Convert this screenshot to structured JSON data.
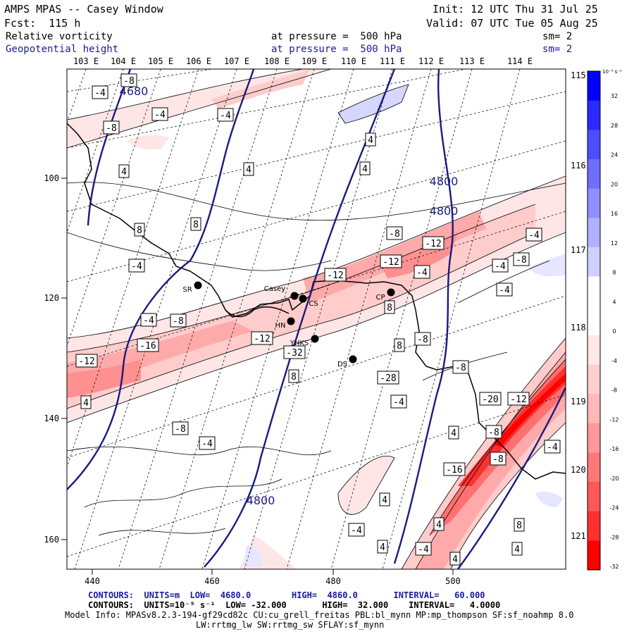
{
  "header": {
    "left_line1": "AMPS MPAS -- Casey Window",
    "left_line2": "Fcst:  115 h",
    "right_line1": "Init: 12 UTC Thu 31 Jul 25",
    "right_line2": "Valid: 07 UTC Tue 05 Aug 25",
    "field1_name": "Relative vorticity",
    "field1_level": "at pressure =  500 hPa",
    "field1_sm": "sm= 2",
    "field2_name": "Geopotential height",
    "field2_level": "at pressure =  500 hPa",
    "field2_sm": "sm= 2"
  },
  "map": {
    "lon_top_labels": [
      "103 E",
      "104 E",
      "105 E",
      "106 E",
      "107 E",
      "108 E",
      "109 E",
      "110 E",
      "111 E",
      "112 E",
      "113 E",
      "114 E"
    ],
    "lon_right_labels": [
      "115 E",
      "116 E",
      "117 E",
      "118 E",
      "119 E",
      "120 E",
      "121 E"
    ],
    "x_axis_ticks": [
      "440",
      "460",
      "480",
      "500"
    ],
    "y_axis_ticks": [
      "100",
      "120",
      "140",
      "160"
    ],
    "stations": [
      {
        "name": "SR"
      },
      {
        "name": "Casey"
      },
      {
        "name": "CS"
      },
      {
        "name": "HN"
      },
      {
        "name": "YHKS"
      },
      {
        "name": "DS"
      },
      {
        "name": "CP"
      }
    ],
    "height_contour_labels": [
      "4680",
      "4800",
      "4800",
      "4800"
    ],
    "vorticity_labels": [
      "-8",
      "-4",
      "-4",
      "-4",
      "-8",
      "4",
      "4",
      "4",
      "4",
      "8",
      "8",
      "-4",
      "-12",
      "-12",
      "-8",
      "-12",
      "-4",
      "-4",
      "-8",
      "-12",
      "-16",
      "-12",
      "4",
      "8",
      "-4",
      "-4",
      "-8",
      "-4",
      "8",
      "8",
      "-8",
      "-32",
      "-28",
      "-12",
      "-20",
      "-8",
      "-8",
      "-16",
      "4",
      "-4",
      "4",
      "8",
      "4",
      "-4",
      "-8",
      "4",
      "-4",
      "4",
      "-4",
      "4",
      "-8",
      "-4"
    ]
  },
  "colorbar": {
    "unit": "10⁻⁵ s⁻¹",
    "labels": [
      "32",
      "28",
      "24",
      "20",
      "16",
      "12",
      "8",
      "4",
      "0",
      "-4",
      "-8",
      "-12",
      "-16",
      "-20",
      "-24",
      "-28",
      "-32"
    ],
    "colors": [
      "#0000ff",
      "#2a2aff",
      "#4d4dff",
      "#6e6eff",
      "#8f8fff",
      "#b0b0ff",
      "#d0d0ff",
      "#ffffff",
      "#ffffff",
      "#ffe8e8",
      "#ffd0d0",
      "#ffb8b8",
      "#ff9898",
      "#ff7878",
      "#ff5858",
      "#ff3030",
      "#ff0000"
    ]
  },
  "footer": {
    "line1": "CONTOURS:  UNITS=m  LOW=  4680.0        HIGH=  4860.0       INTERVAL=   60.000",
    "line2": "CONTOURS:  UNITS=10⁻⁵ s⁻¹  LOW= -32.000       HIGH=  32.000    INTERVAL=   4.0000",
    "line3": "Model Info: MPASv8.2.3-194-gf29cd82c CU:cu_grell_freitas PBL:bl_mynn MP:mp_thompson SF:sf_noahmp 8.0",
    "line4": "LW:rrtmg_lw SW:rrtmg_sw SFLAY:sf_mynn"
  }
}
